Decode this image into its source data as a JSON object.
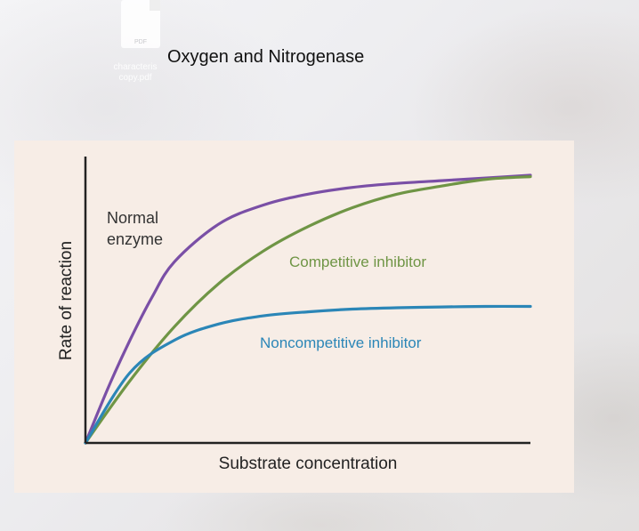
{
  "desktop": {
    "file": {
      "ext_label": "PDF",
      "name_lines": [
        "characteris",
        "copy.pdf"
      ]
    }
  },
  "slide": {
    "title": "Oxygen and Nitrogenase"
  },
  "chart_data": {
    "type": "line",
    "title": "",
    "xlabel": "Substrate concentration",
    "ylabel": "Rate of reaction",
    "xlim": [
      0,
      10
    ],
    "ylim": [
      0,
      10
    ],
    "axis_ticks": false,
    "legend": "inline labels",
    "grid": false,
    "series": [
      {
        "name": "Normal enzyme",
        "label_lines": [
          "Normal",
          "enzyme"
        ],
        "color": "#7a4fa6",
        "x": [
          0,
          0.5,
          1,
          1.5,
          2,
          3,
          4,
          5,
          6,
          7,
          8,
          9,
          10
        ],
        "y": [
          0,
          2.0,
          3.8,
          5.4,
          6.7,
          8.1,
          8.8,
          9.2,
          9.45,
          9.6,
          9.7,
          9.8,
          9.9
        ]
      },
      {
        "name": "Competitive inhibitor",
        "label_lines": [
          "Competitive inhibitor"
        ],
        "color": "#6f9545",
        "x": [
          0,
          1,
          2,
          3,
          4,
          5,
          6,
          7,
          8,
          9,
          10
        ],
        "y": [
          0,
          2.3,
          4.3,
          5.9,
          7.1,
          8.0,
          8.7,
          9.2,
          9.5,
          9.75,
          9.85
        ]
      },
      {
        "name": "Noncompetitive inhibitor",
        "label_lines": [
          "Noncompetitive inhibitor"
        ],
        "color": "#2b86b7",
        "x": [
          0,
          1,
          2,
          3,
          4,
          5,
          6,
          7,
          8,
          9,
          10
        ],
        "y": [
          0,
          2.6,
          3.8,
          4.4,
          4.7,
          4.85,
          4.95,
          5.0,
          5.03,
          5.05,
          5.05
        ]
      }
    ]
  }
}
